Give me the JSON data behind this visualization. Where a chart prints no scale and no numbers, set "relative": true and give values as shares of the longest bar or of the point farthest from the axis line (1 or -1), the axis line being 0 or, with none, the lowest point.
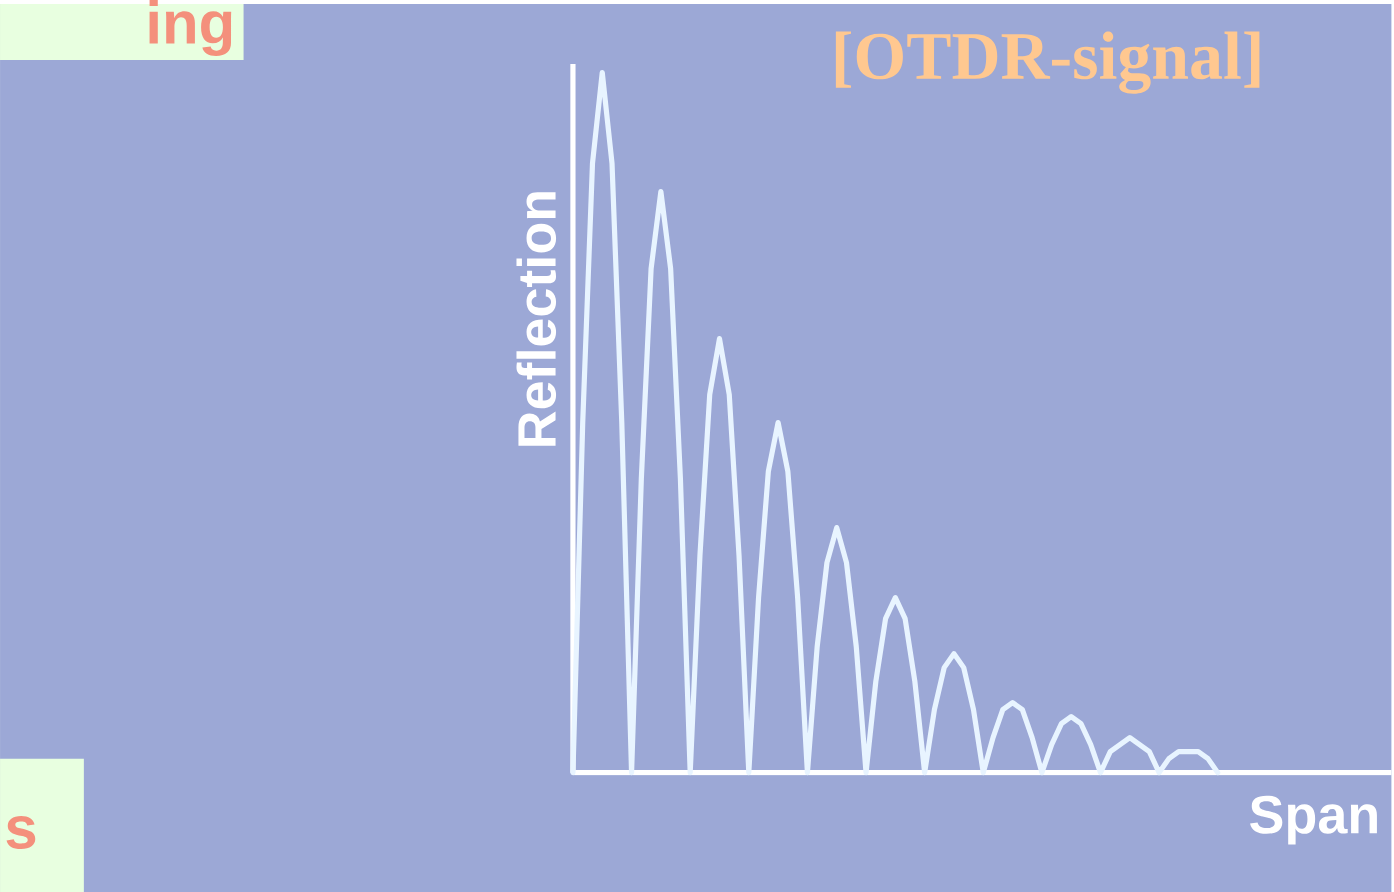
{
  "chart_data": {
    "type": "line",
    "title": "[OTDR-signal]",
    "xlabel": "Span",
    "ylabel": "Reflection",
    "relative": true,
    "marker": "none",
    "line_style": "solid",
    "annotations": [
      "ing",
      "s"
    ],
    "categories": [
      null,
      null,
      null,
      null,
      null,
      null,
      null,
      null,
      null,
      null,
      null,
      null,
      null,
      null,
      null,
      null,
      null,
      null,
      null,
      null,
      null,
      null,
      null,
      null,
      null,
      null,
      null,
      null,
      null,
      null,
      null,
      null,
      null,
      null,
      null,
      null,
      null,
      null,
      null,
      null,
      null,
      null,
      null,
      null,
      null,
      null,
      null,
      null,
      null,
      null,
      null,
      null,
      null,
      null,
      null,
      null,
      null,
      null,
      null,
      null,
      null,
      null,
      null,
      null,
      null,
      null,
      null
    ],
    "series": [
      {
        "color": "#e8f4ff",
        "values": [
          0,
          0.5,
          0.87,
          1,
          0.87,
          0.5,
          0,
          0.42,
          0.72,
          0.83,
          0.72,
          0.42,
          0,
          0.31,
          0.54,
          0.62,
          0.54,
          0.31,
          0,
          0.25,
          0.43,
          0.5,
          0.43,
          0.25,
          0,
          0.18,
          0.3,
          0.35,
          0.3,
          0.18,
          0,
          0.13,
          0.22,
          0.25,
          0.22,
          0.13,
          0,
          0.09,
          0.15,
          0.17,
          0.15,
          0.09,
          0,
          0.05,
          0.09,
          0.1,
          0.09,
          0.05,
          0,
          0.04,
          0.07,
          0.08,
          0.07,
          0.04,
          0,
          0.03,
          0.04,
          0.05,
          0.04,
          0.03,
          0,
          0.02,
          0.03,
          0.03,
          0.03,
          0.02,
          0
        ]
      }
    ]
  }
}
